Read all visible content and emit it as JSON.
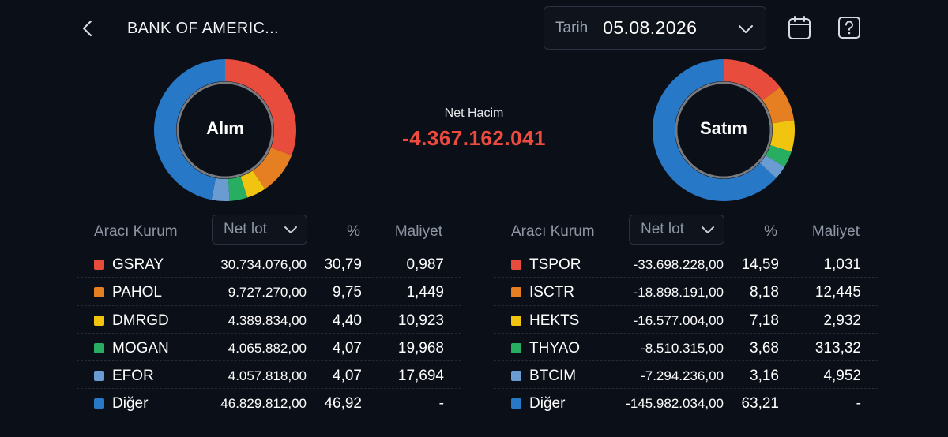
{
  "header": {
    "title": "BANK OF AMERIC...",
    "date_label": "Tarih",
    "date_value": "05.08.2026",
    "icons": {
      "back": "chevron-left-icon",
      "date_dropdown": "chevron-down-icon",
      "calendar": "calendar-icon",
      "help": "help-icon"
    }
  },
  "summary": {
    "buy_label": "Alım",
    "sell_label": "Satım",
    "net_label": "Net Hacim",
    "net_value": "-4.367.162.041",
    "net_color": "#ef4a3f"
  },
  "colors": {
    "red": "#e84c3d",
    "orange": "#e67e22",
    "yellow": "#f1c40f",
    "green": "#27ae60",
    "light_blue": "#6a9bd1",
    "blue": "#2878c8"
  },
  "buy_table": {
    "headers": {
      "broker": "Aracı Kurum",
      "lot": "Net lot",
      "pct": "%",
      "cost": "Maliyet"
    },
    "rows": [
      {
        "name": "GSRAY",
        "lot": "30.734.076,00",
        "pct": "30,79",
        "cost": "0,987",
        "color": "#e84c3d",
        "share": 30.79
      },
      {
        "name": "PAHOL",
        "lot": "9.727.270,00",
        "pct": "9,75",
        "cost": "1,449",
        "color": "#e67e22",
        "share": 9.75
      },
      {
        "name": "DMRGD",
        "lot": "4.389.834,00",
        "pct": "4,40",
        "cost": "10,923",
        "color": "#f1c40f",
        "share": 4.4
      },
      {
        "name": "MOGAN",
        "lot": "4.065.882,00",
        "pct": "4,07",
        "cost": "19,968",
        "color": "#27ae60",
        "share": 4.07
      },
      {
        "name": "EFOR",
        "lot": "4.057.818,00",
        "pct": "4,07",
        "cost": "17,694",
        "color": "#6a9bd1",
        "share": 4.07
      },
      {
        "name": "Diğer",
        "lot": "46.829.812,00",
        "pct": "46,92",
        "cost": "-",
        "color": "#2878c8",
        "share": 46.92
      }
    ]
  },
  "sell_table": {
    "headers": {
      "broker": "Aracı Kurum",
      "lot": "Net lot",
      "pct": "%",
      "cost": "Maliyet"
    },
    "rows": [
      {
        "name": "TSPOR",
        "lot": "-33.698.228,00",
        "pct": "14,59",
        "cost": "1,031",
        "color": "#e84c3d",
        "share": 14.59
      },
      {
        "name": "ISCTR",
        "lot": "-18.898.191,00",
        "pct": "8,18",
        "cost": "12,445",
        "color": "#e67e22",
        "share": 8.18
      },
      {
        "name": "HEKTS",
        "lot": "-16.577.004,00",
        "pct": "7,18",
        "cost": "2,932",
        "color": "#f1c40f",
        "share": 7.18
      },
      {
        "name": "THYAO",
        "lot": "-8.510.315,00",
        "pct": "3,68",
        "cost": "313,32",
        "color": "#27ae60",
        "share": 3.68
      },
      {
        "name": "BTCIM",
        "lot": "-7.294.236,00",
        "pct": "3,16",
        "cost": "4,952",
        "color": "#6a9bd1",
        "share": 3.16
      },
      {
        "name": "Diğer",
        "lot": "-145.982.034,00",
        "pct": "63,21",
        "cost": "-",
        "color": "#2878c8",
        "share": 63.21
      }
    ]
  }
}
